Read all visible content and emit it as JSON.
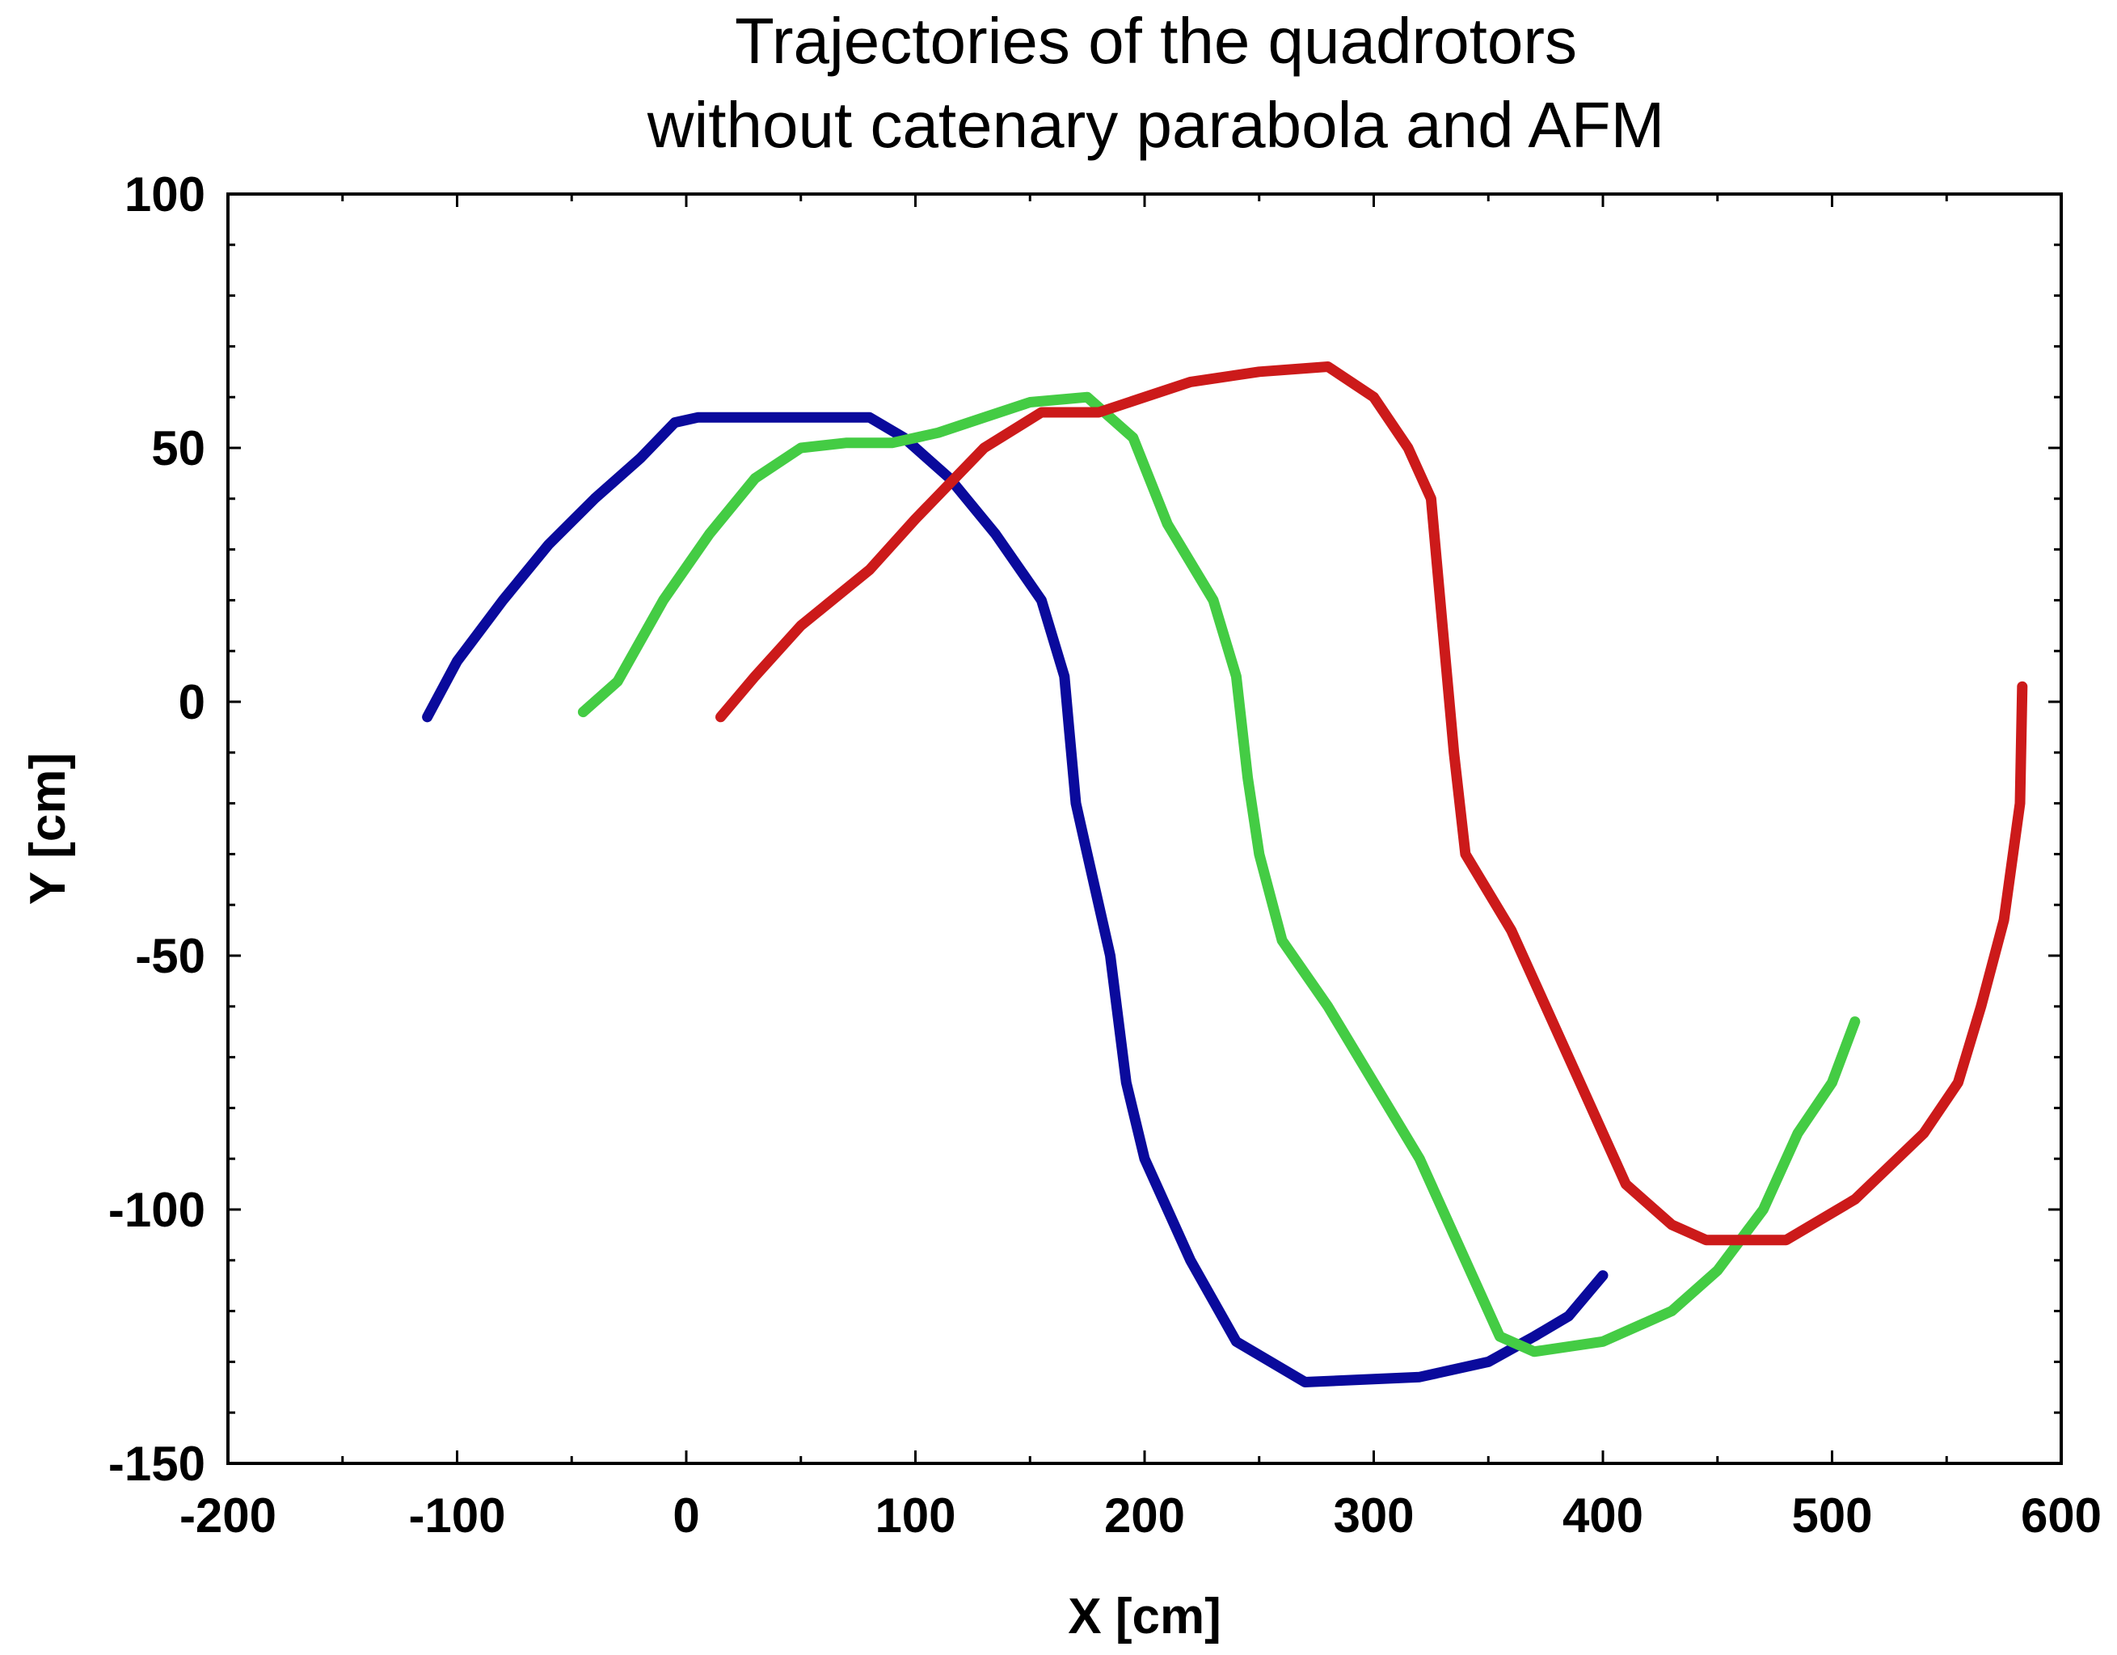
{
  "chart_data": {
    "type": "line",
    "title": [
      "Trajectories of the quadrotors",
      "without catenary parabola and AFM"
    ],
    "xlabel": "X [cm]",
    "ylabel": "Y [cm]",
    "xlim": [
      -200,
      600
    ],
    "ylim": [
      -150,
      100
    ],
    "xticks": [
      -200,
      -100,
      0,
      100,
      200,
      300,
      400,
      500,
      600
    ],
    "yticks": [
      100,
      50,
      0,
      -50,
      -100,
      -150
    ],
    "xtick_labels": [
      "-200",
      "-100",
      "0",
      "100",
      "200",
      "300",
      "400",
      "500",
      "600"
    ],
    "ytick_labels": [
      "100",
      "50",
      "0",
      "-50",
      "-100",
      "-150"
    ],
    "grid": false,
    "legend": "none",
    "series": [
      {
        "name": "blue",
        "color": "#0a0a9c",
        "x": [
          -113,
          -100,
          -80,
          -60,
          -40,
          -20,
          -5,
          5,
          40,
          80,
          95,
          115,
          135,
          155,
          165,
          167,
          170,
          175,
          185,
          192,
          200,
          220,
          240,
          270,
          320,
          350,
          370,
          385,
          400
        ],
        "y": [
          -3,
          8,
          20,
          31,
          40,
          48,
          55,
          56,
          56,
          56,
          52,
          44,
          33,
          20,
          5,
          -5,
          -20,
          -30,
          -50,
          -75,
          -90,
          -110,
          -126,
          -134,
          -133,
          -130,
          -125,
          -121,
          -113
        ]
      },
      {
        "name": "green",
        "color": "#44cc44",
        "x": [
          -45,
          -30,
          -10,
          10,
          30,
          50,
          70,
          90,
          110,
          130,
          150,
          175,
          195,
          210,
          230,
          240,
          245,
          250,
          260,
          280,
          300,
          320,
          335,
          355,
          370,
          400,
          430,
          450,
          470,
          485,
          500,
          510
        ],
        "y": [
          -2,
          4,
          20,
          33,
          44,
          50,
          51,
          51,
          53,
          56,
          59,
          60,
          52,
          35,
          20,
          5,
          -15,
          -30,
          -47,
          -60,
          -75,
          -90,
          -105,
          -125,
          -128,
          -126,
          -120,
          -112,
          -100,
          -85,
          -75,
          -63
        ]
      },
      {
        "name": "red",
        "color": "#cc1a1a",
        "x": [
          15,
          30,
          50,
          80,
          100,
          130,
          155,
          180,
          200,
          220,
          250,
          280,
          300,
          315,
          325,
          330,
          335,
          340,
          360,
          390,
          410,
          430,
          445,
          460,
          480,
          510,
          540,
          555,
          565,
          575,
          582,
          583
        ],
        "y": [
          -3,
          5,
          15,
          26,
          36,
          50,
          57,
          57,
          60,
          63,
          65,
          66,
          60,
          50,
          40,
          15,
          -10,
          -30,
          -45,
          -75,
          -95,
          -103,
          -106,
          -106,
          -106,
          -98,
          -85,
          -75,
          -60,
          -43,
          -20,
          3
        ]
      }
    ]
  }
}
